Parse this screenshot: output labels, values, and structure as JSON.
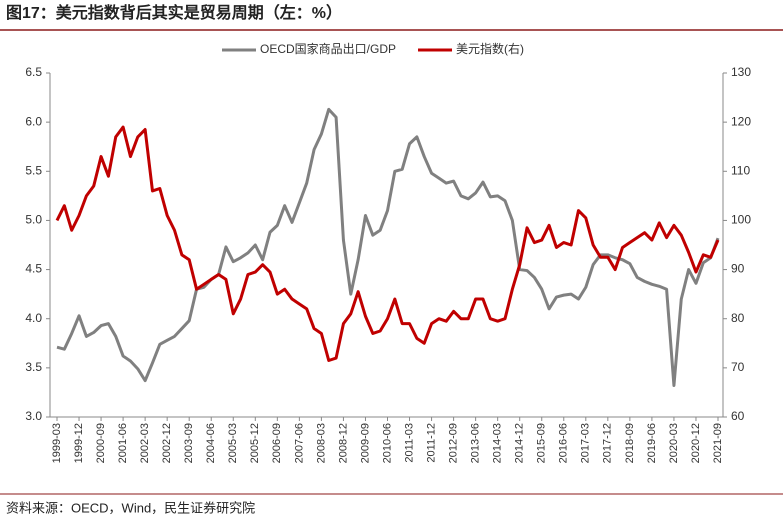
{
  "chart_data": {
    "type": "line",
    "title": "图17：美元指数背后其实是贸易周期（左：%）",
    "source": "资料来源：OECD，Wind，民生证券研究院",
    "categories": [
      "1999-03",
      null,
      null,
      "1999-12",
      null,
      null,
      "2000-09",
      null,
      null,
      "2001-06",
      null,
      null,
      "2002-03",
      null,
      null,
      "2002-12",
      null,
      null,
      "2003-09",
      null,
      null,
      "2004-06",
      null,
      null,
      "2005-03",
      null,
      null,
      "2005-12",
      null,
      null,
      "2006-09",
      null,
      null,
      "2007-06",
      null,
      null,
      "2008-03",
      null,
      null,
      "2008-12",
      null,
      null,
      "2009-09",
      null,
      null,
      "2010-06",
      null,
      null,
      "2011-03",
      null,
      null,
      "2011-12",
      null,
      null,
      "2012-09",
      null,
      null,
      "2013-06",
      null,
      null,
      "2014-03",
      null,
      null,
      "2014-12",
      null,
      null,
      "2015-09",
      null,
      null,
      "2016-06",
      null,
      null,
      "2017-03",
      null,
      null,
      "2017-12",
      null,
      null,
      "2018-09",
      null,
      null,
      "2019-06",
      null,
      null,
      "2020-03",
      null,
      null,
      "2020-12",
      null,
      null,
      "2021-09"
    ],
    "series": [
      {
        "name": "OECD国家商品出口/GDP",
        "color": "#808080",
        "axis": "y",
        "values": [
          3.71,
          3.69,
          3.85,
          4.03,
          3.82,
          3.86,
          3.93,
          3.95,
          3.82,
          3.62,
          3.57,
          3.49,
          3.37,
          3.55,
          3.74,
          3.78,
          3.82,
          3.9,
          3.98,
          4.3,
          4.32,
          4.4,
          4.45,
          4.73,
          4.58,
          4.62,
          4.67,
          4.75,
          4.6,
          4.88,
          4.95,
          5.15,
          4.98,
          5.18,
          5.38,
          5.72,
          5.88,
          6.13,
          6.05,
          4.8,
          4.25,
          4.6,
          5.05,
          4.85,
          4.9,
          5.1,
          5.5,
          5.52,
          5.78,
          5.85,
          5.65,
          5.48,
          5.43,
          5.38,
          5.4,
          5.25,
          5.22,
          5.28,
          5.39,
          5.24,
          5.25,
          5.2,
          5.0,
          4.5,
          4.49,
          4.42,
          4.3,
          4.1,
          4.22,
          4.24,
          4.25,
          4.2,
          4.32,
          4.55,
          4.65,
          4.65,
          4.62,
          4.6,
          4.56,
          4.42,
          4.38,
          4.35,
          4.33,
          4.3,
          3.32,
          4.2,
          4.5,
          4.36,
          4.57,
          4.62,
          4.82
        ]
      },
      {
        "name": "美元指数(右)",
        "color": "#c00000",
        "axis": "y2",
        "values": [
          100,
          103,
          98,
          101,
          105,
          107,
          113,
          109,
          117,
          119,
          113,
          117,
          118.5,
          106,
          106.5,
          101,
          98,
          93,
          92,
          86,
          87,
          88,
          89,
          88,
          81,
          84,
          89,
          89.5,
          91,
          89.5,
          85,
          86,
          84,
          83,
          82,
          78,
          77,
          71.5,
          72,
          79,
          81,
          85.5,
          80.5,
          77,
          77.5,
          80,
          84,
          79,
          79,
          76,
          75,
          79,
          80,
          79.5,
          81.5,
          80,
          80,
          84,
          84,
          80,
          79.5,
          80,
          86,
          91,
          98.5,
          95.5,
          96,
          99,
          94.5,
          95.5,
          95,
          102,
          100.5,
          95,
          92.5,
          92.5,
          90,
          94.5,
          95.5,
          96.5,
          97.5,
          96,
          99.5,
          96.5,
          99,
          97,
          93.5,
          89.5,
          93,
          92.5,
          96
        ]
      }
    ],
    "ylim": [
      3,
      6.5
    ],
    "yticks": [
      {
        "value": 3,
        "label": "3.0"
      },
      {
        "value": 3.5,
        "label": "3.5"
      },
      {
        "value": 4,
        "label": "4.0"
      },
      {
        "value": 4.5,
        "label": "4.5"
      },
      {
        "value": 5,
        "label": "5.0"
      },
      {
        "value": 5.5,
        "label": "5.5"
      },
      {
        "value": 6,
        "label": "6.0"
      },
      {
        "value": 6.5,
        "label": "6.5"
      }
    ],
    "y2lim": [
      60,
      130
    ],
    "y2ticks": [
      60,
      70,
      80,
      90,
      100,
      110,
      120,
      130
    ],
    "legend": "top"
  }
}
